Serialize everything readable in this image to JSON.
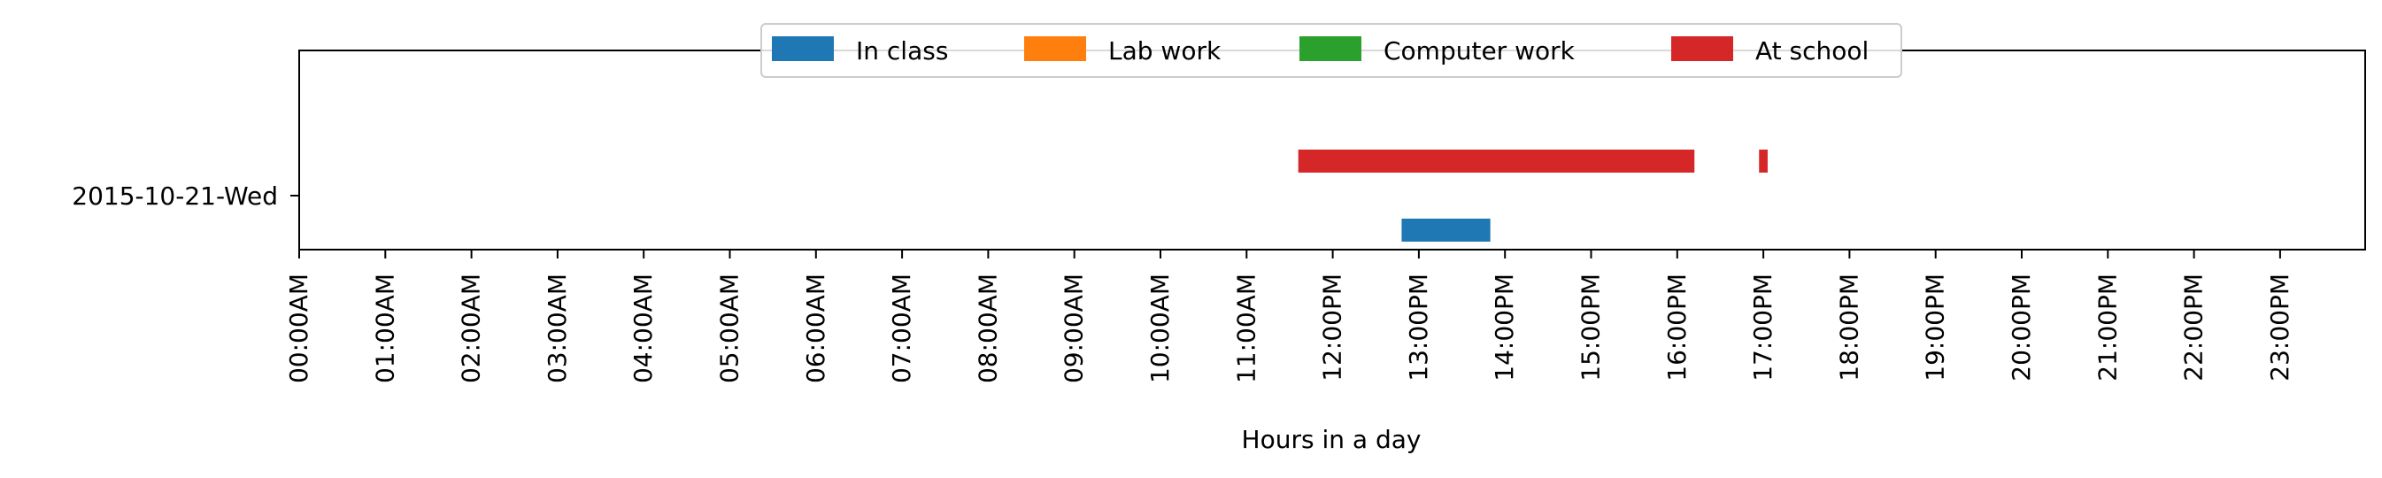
{
  "chart_data": {
    "type": "bar",
    "orientation": "horizontal-timeline",
    "xlabel": "Hours in a day",
    "ylabel": "",
    "xlim": [
      0,
      24
    ],
    "x_ticks": [
      0,
      1,
      2,
      3,
      4,
      5,
      6,
      7,
      8,
      9,
      10,
      11,
      12,
      13,
      14,
      15,
      16,
      17,
      18,
      19,
      20,
      21,
      22,
      23
    ],
    "x_tick_labels": [
      "00:00AM",
      "01:00AM",
      "02:00AM",
      "03:00AM",
      "04:00AM",
      "05:00AM",
      "06:00AM",
      "07:00AM",
      "08:00AM",
      "09:00AM",
      "10:00AM",
      "11:00AM",
      "12:00PM",
      "13:00PM",
      "14:00PM",
      "15:00PM",
      "16:00PM",
      "17:00PM",
      "18:00PM",
      "19:00PM",
      "20:00PM",
      "21:00PM",
      "22:00PM",
      "23:00PM"
    ],
    "categories": [
      "2015-10-21-Wed"
    ],
    "grid": false,
    "legend_position": "top-center",
    "series": [
      {
        "name": "In class",
        "color": "#1f77b4",
        "intervals": [
          [
            12.8,
            13.83
          ]
        ]
      },
      {
        "name": "Lab work",
        "color": "#ff7f0e",
        "intervals": []
      },
      {
        "name": "Computer work",
        "color": "#2ca02c",
        "intervals": []
      },
      {
        "name": "At school",
        "color": "#d62728",
        "intervals": [
          [
            11.6,
            16.2
          ],
          [
            16.95,
            17.05
          ]
        ]
      }
    ]
  }
}
